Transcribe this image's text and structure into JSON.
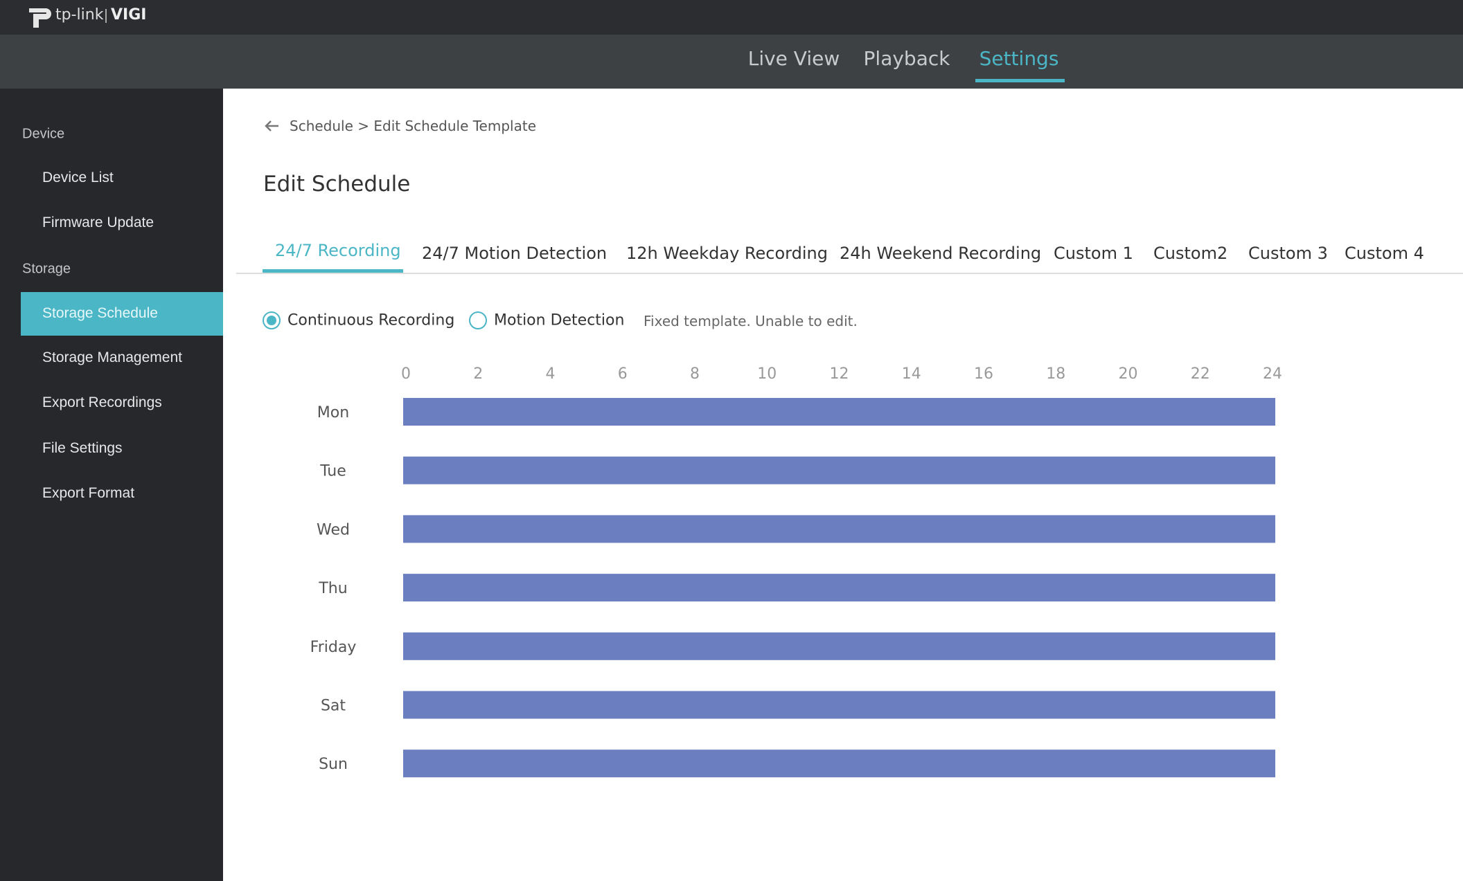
{
  "header": {
    "brand": "tp-link",
    "product": "VIGI"
  },
  "nav": [
    "Live View",
    "Playback",
    "Settings"
  ],
  "sidebar": {
    "sections": [
      {
        "title": "Device",
        "items": [
          "Device List",
          "Firmware Update"
        ]
      },
      {
        "title": "Storage",
        "items": [
          "Storage Schedule",
          "Storage Management",
          "Export Recordings",
          "File Settings",
          "Export Format"
        ]
      }
    ]
  },
  "breadcrumb": {
    "parent": "Schedule",
    "separator": ">",
    "current": "Edit Schedule Template"
  },
  "title": "Edit Schedule",
  "tabs": [
    "24/7 Recording",
    "24/7 Motion Detection",
    "12h Weekday Recording",
    "24h Weekend Recording",
    "Custom 1",
    "Custom2",
    "Custom 3",
    "Custom 4"
  ],
  "modes": [
    "Continuous Recording",
    "Motion Detection"
  ],
  "note": "Fixed template. Unable to edit.",
  "schedule": {
    "hours": [
      0,
      2,
      4,
      6,
      8,
      10,
      12,
      14,
      16,
      18,
      20,
      22,
      24
    ],
    "color": "#6b7fc0",
    "days": [
      {
        "label": "Mon",
        "start": 0,
        "end": 24
      },
      {
        "label": "Tue",
        "start": 0,
        "end": 24
      },
      {
        "label": "Wed",
        "start": 0,
        "end": 24
      },
      {
        "label": "Thu",
        "start": 0,
        "end": 24
      },
      {
        "label": "Friday",
        "start": 0,
        "end": 24
      },
      {
        "label": "Sat",
        "start": 0,
        "end": 24
      },
      {
        "label": "Sun",
        "start": 0,
        "end": 24
      }
    ]
  }
}
